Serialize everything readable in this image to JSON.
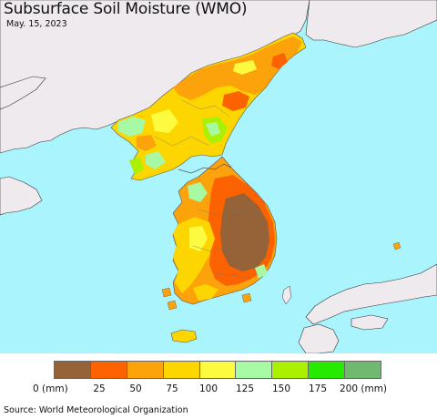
{
  "header": {
    "title": "Subsurface Soil Moisture (WMO)",
    "date": "May. 15, 2023"
  },
  "map": {
    "sea_color": "#aaf5fd",
    "foreign_land_color": "#efeaee",
    "colors": {
      "brown": "#966237",
      "dark_orange": "#fc6300",
      "orange": "#fca20b",
      "gold": "#fdd600",
      "yellow": "#fdfb40",
      "light_green": "#a8f9a3",
      "lime": "#aaf000",
      "green": "#26eb00",
      "dark_green": "#71b971"
    }
  },
  "legend": {
    "colors": [
      "#966237",
      "#fc6300",
      "#fca20b",
      "#fdd600",
      "#fdfb40",
      "#a8f9a3",
      "#aaf000",
      "#26eb00",
      "#71b971"
    ],
    "labels": [
      "0 (mm)",
      "25",
      "50",
      "75",
      "100",
      "125",
      "150",
      "175",
      "200 (mm)"
    ]
  },
  "footer": {
    "source": "Source: World Meteorological Organization"
  }
}
